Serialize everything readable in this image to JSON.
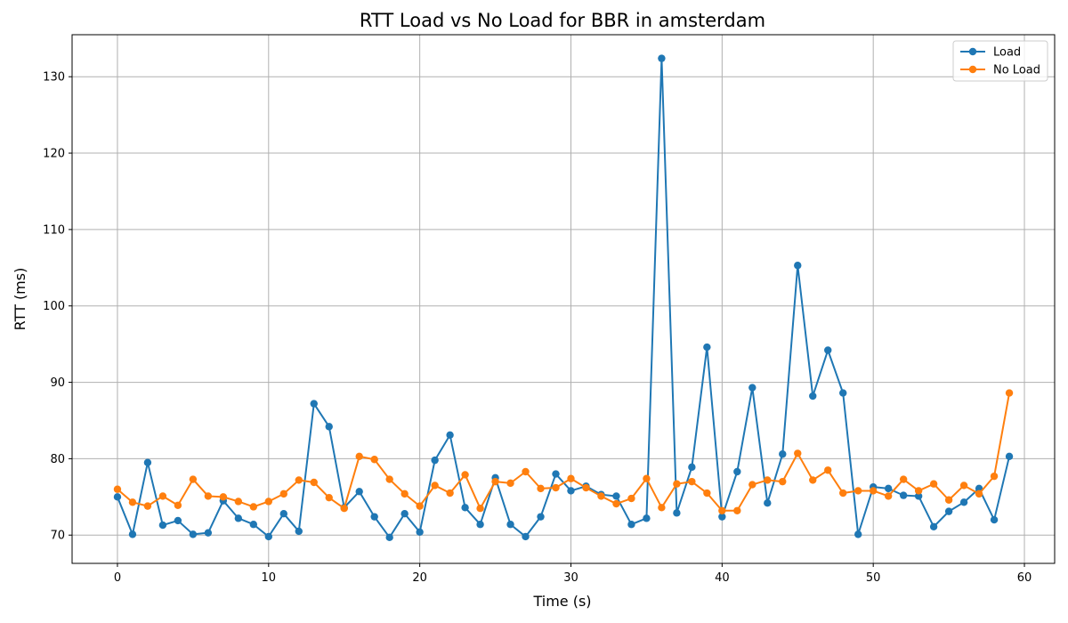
{
  "chart_data": {
    "type": "line",
    "title": "RTT Load vs No Load for BBR in amsterdam",
    "xlabel": "Time (s)",
    "ylabel": "RTT (ms)",
    "xlim": [
      -3,
      62
    ],
    "ylim": [
      66.3,
      135.5
    ],
    "xticks": [
      0,
      10,
      20,
      30,
      40,
      50,
      60
    ],
    "yticks": [
      70,
      80,
      90,
      100,
      110,
      120,
      130
    ],
    "grid": true,
    "legend_position": "top-right",
    "series": [
      {
        "name": "Load",
        "color": "#1f77b4",
        "x": [
          0,
          1,
          2,
          3,
          4,
          5,
          6,
          7,
          8,
          9,
          10,
          11,
          12,
          13,
          14,
          15,
          16,
          17,
          18,
          19,
          20,
          21,
          22,
          23,
          24,
          25,
          26,
          27,
          28,
          29,
          30,
          31,
          32,
          33,
          34,
          35,
          36,
          37,
          38,
          39,
          40,
          41,
          42,
          43,
          44,
          45,
          46,
          47,
          48,
          49,
          50,
          51,
          52,
          53,
          54,
          55,
          56,
          57,
          58,
          59
        ],
        "values": [
          75.0,
          70.1,
          79.5,
          71.3,
          71.9,
          70.1,
          70.3,
          74.5,
          72.2,
          71.4,
          69.8,
          72.8,
          70.5,
          87.2,
          84.2,
          73.6,
          75.7,
          72.4,
          69.7,
          72.8,
          70.4,
          79.8,
          83.1,
          73.6,
          71.4,
          77.5,
          71.4,
          69.8,
          72.4,
          78.0,
          75.8,
          76.4,
          75.3,
          75.1,
          71.4,
          72.2,
          132.4,
          72.9,
          78.9,
          94.6,
          72.4,
          78.3,
          89.3,
          74.2,
          80.6,
          105.3,
          88.2,
          94.2,
          88.6,
          70.1,
          76.3,
          76.1,
          75.2,
          75.1,
          71.1,
          73.1,
          74.3,
          76.1,
          72.0,
          80.3
        ]
      },
      {
        "name": "No Load",
        "color": "#ff7f0e",
        "x": [
          0,
          1,
          2,
          3,
          4,
          5,
          6,
          7,
          8,
          9,
          10,
          11,
          12,
          13,
          14,
          15,
          16,
          17,
          18,
          19,
          20,
          21,
          22,
          23,
          24,
          25,
          26,
          27,
          28,
          29,
          30,
          31,
          32,
          33,
          34,
          35,
          36,
          37,
          38,
          39,
          40,
          41,
          42,
          43,
          44,
          45,
          46,
          47,
          48,
          49,
          50,
          51,
          52,
          53,
          54,
          55,
          56,
          57,
          58,
          59
        ],
        "values": [
          76.0,
          74.3,
          73.8,
          75.1,
          73.9,
          77.3,
          75.1,
          75.0,
          74.4,
          73.7,
          74.4,
          75.4,
          77.2,
          76.9,
          74.9,
          73.5,
          80.3,
          79.9,
          77.3,
          75.4,
          73.8,
          76.5,
          75.5,
          77.9,
          73.5,
          77.0,
          76.8,
          78.3,
          76.1,
          76.2,
          77.4,
          76.2,
          75.1,
          74.1,
          74.8,
          77.4,
          73.6,
          76.7,
          77.0,
          75.5,
          73.2,
          73.2,
          76.6,
          77.2,
          77.0,
          80.7,
          77.2,
          78.5,
          75.5,
          75.8,
          75.8,
          75.1,
          77.3,
          75.8,
          76.7,
          74.6,
          76.5,
          75.4,
          77.7,
          88.6
        ]
      }
    ]
  }
}
